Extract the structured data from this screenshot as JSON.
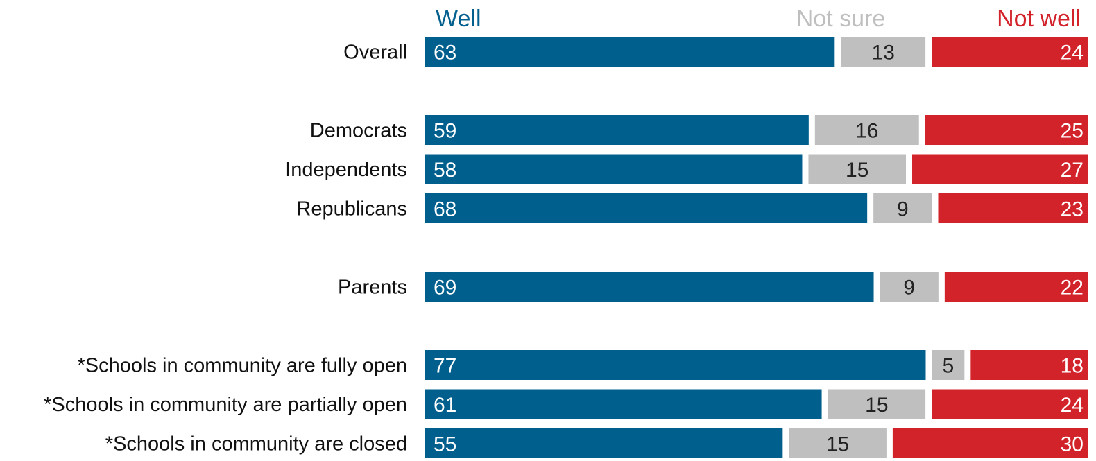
{
  "chart_data": {
    "type": "bar",
    "stacked": true,
    "orientation": "horizontal",
    "series": [
      {
        "name": "Well",
        "color": "#005F8C",
        "values": [
          63,
          59,
          58,
          68,
          69,
          77,
          61,
          55
        ]
      },
      {
        "name": "Not sure",
        "color": "#BFBFBF",
        "values": [
          13,
          16,
          15,
          9,
          9,
          5,
          15,
          15
        ]
      },
      {
        "name": "Not well",
        "color": "#D3232A",
        "values": [
          24,
          25,
          27,
          23,
          22,
          18,
          24,
          30
        ]
      }
    ],
    "categories": [
      "Overall",
      "Democrats",
      "Independents",
      "Republicans",
      "Parents",
      "*Schools in community are fully open",
      "*Schools in community are partially open",
      "*Schools in community are closed"
    ],
    "groups": [
      [
        0
      ],
      [
        1,
        2,
        3
      ],
      [
        4
      ],
      [
        5,
        6,
        7
      ]
    ],
    "legend": "top",
    "grid": false,
    "xlim": [
      0,
      100
    ],
    "label_colors": {
      "Well": "#ffffff",
      "Not sure": "#222222",
      "Not well": "#ffffff"
    }
  }
}
